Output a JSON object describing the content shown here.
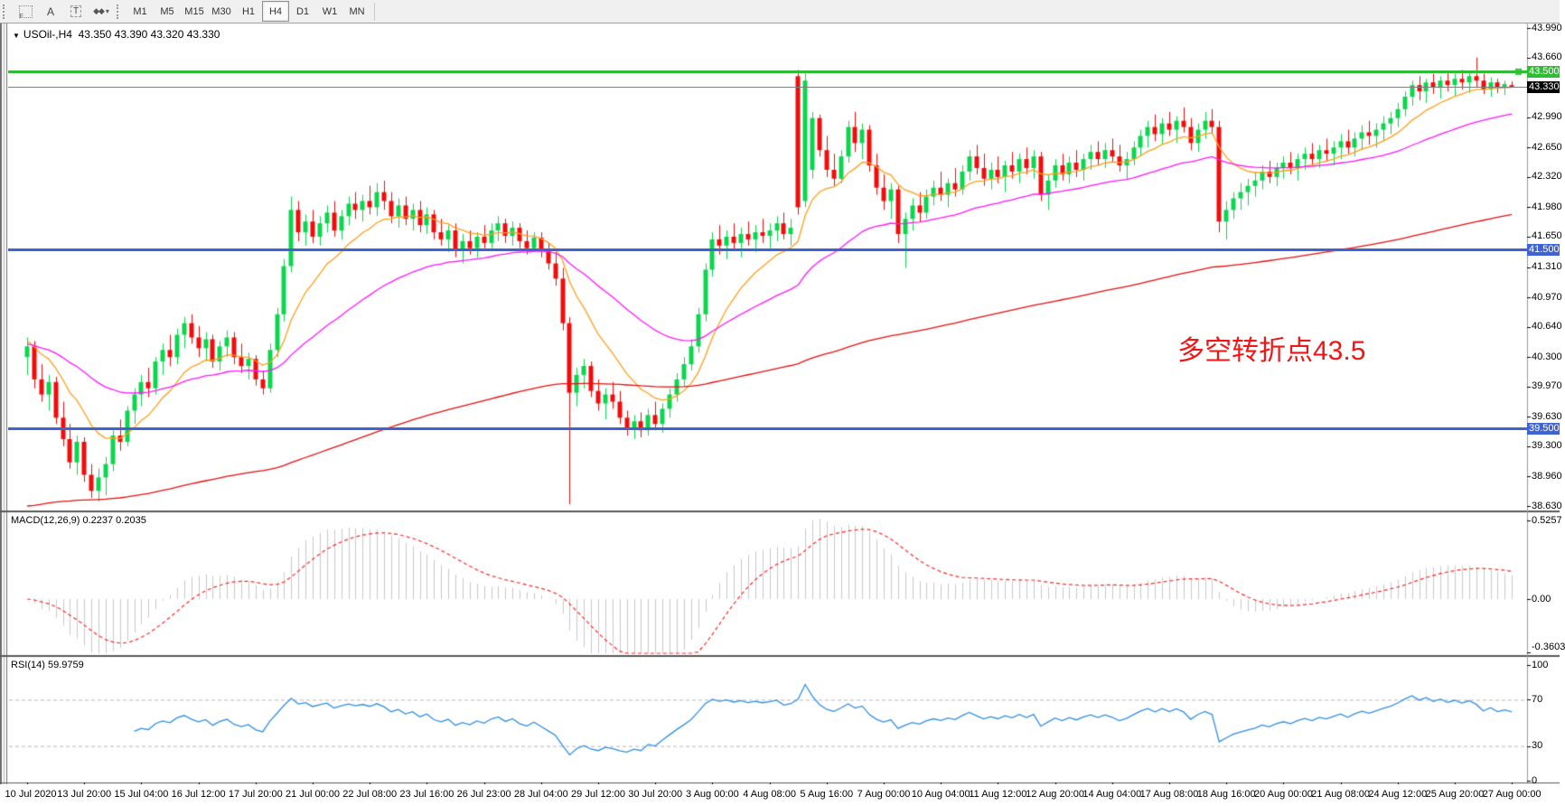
{
  "toolbar": {
    "tools": [
      {
        "name": "template-grid-icon",
        "glyph": "F"
      },
      {
        "name": "text-annotation-icon",
        "glyph": "A"
      },
      {
        "name": "text-label-icon",
        "glyph": "T"
      },
      {
        "name": "shapes-menu-icon",
        "glyph": "◆◆",
        "caret": "▾"
      }
    ],
    "timeframes": [
      "M1",
      "M5",
      "M15",
      "M30",
      "H1",
      "H4",
      "D1",
      "W1",
      "MN"
    ],
    "active_timeframe": "H4"
  },
  "chart": {
    "symbol_title": "USOil-,H4",
    "dropdown_glyph": "▼",
    "ohlc_readout": "43.350 43.390 43.320 43.330",
    "annotation": {
      "text": "多空转折点43.5",
      "color": "#f21515"
    },
    "price_axis_labels": [
      "43.990",
      "43.660",
      "42.990",
      "42.650",
      "42.320",
      "41.980",
      "41.650",
      "41.310",
      "40.970",
      "40.640",
      "40.300",
      "39.970",
      "39.630",
      "39.300",
      "38.960",
      "38.630"
    ],
    "levels": [
      {
        "label": "43.500",
        "value": 43.5,
        "color": "#2fbe33",
        "type": "resistance"
      },
      {
        "label": "41.500",
        "value": 41.5,
        "color": "#3f63d2",
        "type": "support"
      },
      {
        "label": "39.500",
        "value": 39.5,
        "color": "#3f63d2",
        "type": "support"
      }
    ],
    "current_price": {
      "label": "43.330",
      "value": 43.33,
      "badge_bg": "#000000",
      "line_color": "#808080"
    },
    "up_color": "#0bd64e",
    "down_color": "#f20c0c"
  },
  "macd_panel": {
    "label": "MACD(12,26,9) 0.2237 0.2035",
    "axis_labels": [
      "0.5257",
      "0.00",
      "-0.3603"
    ],
    "axis_values": [
      0.5257,
      0,
      -0.3603
    ],
    "histogram_color": "#c9c9c9",
    "signal_color": "#ff2a2a"
  },
  "rsi_panel": {
    "label": "RSI(14) 59.9759",
    "axis_labels": [
      "100",
      "70",
      "30",
      "0"
    ],
    "axis_values": [
      100,
      70,
      30,
      0
    ],
    "line_color": "#2f8fe8",
    "level_lines": [
      70,
      30
    ]
  },
  "time_axis": {
    "labels": [
      "10 Jul 2020",
      "13 Jul 20:00",
      "15 Jul 04:00",
      "16 Jul 12:00",
      "17 Jul 20:00",
      "21 Jul 00:00",
      "22 Jul 08:00",
      "23 Jul 16:00",
      "26 Jul 23:00",
      "28 Jul 04:00",
      "29 Jul 12:00",
      "30 Jul 20:00",
      "3 Aug 00:00",
      "4 Aug 08:00",
      "5 Aug 16:00",
      "7 Aug 00:00",
      "10 Aug 04:00",
      "11 Aug 12:00",
      "12 Aug 20:00",
      "14 Aug 04:00",
      "17 Aug 08:00",
      "18 Aug 16:00",
      "20 Aug 00:00",
      "21 Aug 08:00",
      "24 Aug 12:00",
      "25 Aug 20:00",
      "27 Aug 00:00"
    ]
  },
  "chart_data": {
    "type": "candlestick",
    "symbol": "USOil",
    "timeframe": "H4",
    "price_range": {
      "top": 43.99,
      "bottom": 38.63
    },
    "macd_range": {
      "top": 0.5257,
      "bottom": -0.3603
    },
    "levels": [
      43.5,
      41.5,
      39.5
    ],
    "moving_averages": [
      {
        "name": "fast-ma",
        "color": "#ff9f1a",
        "alpha": 0.16,
        "seed": 40.5
      },
      {
        "name": "medium-ma",
        "color": "#ff17ff",
        "alpha": 0.05,
        "seed": 40.45
      },
      {
        "name": "slow-ma",
        "color": "#e81010",
        "alpha": 0.011,
        "seed": 38.6
      }
    ],
    "macd": {
      "fast": 12,
      "slow": 26,
      "signal": 9,
      "current": 0.2237,
      "current_signal": 0.2035
    },
    "rsi": {
      "period": 14,
      "current": 59.9759
    },
    "ohlc": [
      [
        40.3,
        40.52,
        40.1,
        40.42
      ],
      [
        40.42,
        40.48,
        39.95,
        40.05
      ],
      [
        40.05,
        40.22,
        39.8,
        39.88
      ],
      [
        39.88,
        40.1,
        39.7,
        40.02
      ],
      [
        40.02,
        40.08,
        39.55,
        39.62
      ],
      [
        39.62,
        39.8,
        39.3,
        39.38
      ],
      [
        39.38,
        39.55,
        39.05,
        39.12
      ],
      [
        39.12,
        39.42,
        38.98,
        39.35
      ],
      [
        39.35,
        39.4,
        38.9,
        38.98
      ],
      [
        38.98,
        39.1,
        38.72,
        38.8
      ],
      [
        38.8,
        39.05,
        38.68,
        38.95
      ],
      [
        38.95,
        39.18,
        38.75,
        39.1
      ],
      [
        39.1,
        39.48,
        39.02,
        39.42
      ],
      [
        39.42,
        39.6,
        39.25,
        39.35
      ],
      [
        39.35,
        39.75,
        39.3,
        39.7
      ],
      [
        39.7,
        39.95,
        39.55,
        39.88
      ],
      [
        39.88,
        40.1,
        39.75,
        40.02
      ],
      [
        40.02,
        40.18,
        39.85,
        39.95
      ],
      [
        39.95,
        40.3,
        39.88,
        40.25
      ],
      [
        40.25,
        40.45,
        40.1,
        40.38
      ],
      [
        40.38,
        40.55,
        40.2,
        40.3
      ],
      [
        40.3,
        40.62,
        40.22,
        40.55
      ],
      [
        40.55,
        40.75,
        40.4,
        40.68
      ],
      [
        40.68,
        40.78,
        40.45,
        40.52
      ],
      [
        40.52,
        40.65,
        40.3,
        40.4
      ],
      [
        40.4,
        40.58,
        40.25,
        40.5
      ],
      [
        40.5,
        40.55,
        40.18,
        40.25
      ],
      [
        40.25,
        40.48,
        40.15,
        40.42
      ],
      [
        40.42,
        40.6,
        40.3,
        40.52
      ],
      [
        40.52,
        40.58,
        40.22,
        40.3
      ],
      [
        40.3,
        40.45,
        40.12,
        40.2
      ],
      [
        40.2,
        40.35,
        40.05,
        40.28
      ],
      [
        40.28,
        40.32,
        39.98,
        40.05
      ],
      [
        40.05,
        40.15,
        39.88,
        39.95
      ],
      [
        39.95,
        40.45,
        39.9,
        40.38
      ],
      [
        40.38,
        40.85,
        40.3,
        40.78
      ],
      [
        40.78,
        41.4,
        40.7,
        41.32
      ],
      [
        41.32,
        42.1,
        41.25,
        41.95
      ],
      [
        41.95,
        42.05,
        41.6,
        41.7
      ],
      [
        41.7,
        41.9,
        41.55,
        41.82
      ],
      [
        41.82,
        41.95,
        41.58,
        41.65
      ],
      [
        41.65,
        41.88,
        41.55,
        41.8
      ],
      [
        41.8,
        42.0,
        41.7,
        41.92
      ],
      [
        41.92,
        42.05,
        41.65,
        41.72
      ],
      [
        41.72,
        41.95,
        41.62,
        41.88
      ],
      [
        41.88,
        42.1,
        41.78,
        42.02
      ],
      [
        42.02,
        42.15,
        41.85,
        41.95
      ],
      [
        41.95,
        42.12,
        41.82,
        42.05
      ],
      [
        42.05,
        42.22,
        41.9,
        41.98
      ],
      [
        41.98,
        42.25,
        41.88,
        42.15
      ],
      [
        42.15,
        42.28,
        41.95,
        42.05
      ],
      [
        42.05,
        42.15,
        41.8,
        41.88
      ],
      [
        41.88,
        42.08,
        41.75,
        42.0
      ],
      [
        42.0,
        42.1,
        41.78,
        41.85
      ],
      [
        41.85,
        42.02,
        41.72,
        41.95
      ],
      [
        41.95,
        42.05,
        41.7,
        41.78
      ],
      [
        41.78,
        41.98,
        41.68,
        41.9
      ],
      [
        41.9,
        41.95,
        41.62,
        41.7
      ],
      [
        41.7,
        41.85,
        41.55,
        41.62
      ],
      [
        41.62,
        41.78,
        41.48,
        41.72
      ],
      [
        41.72,
        41.8,
        41.42,
        41.5
      ],
      [
        41.5,
        41.68,
        41.35,
        41.6
      ],
      [
        41.6,
        41.72,
        41.45,
        41.52
      ],
      [
        41.52,
        41.7,
        41.42,
        41.65
      ],
      [
        41.65,
        41.78,
        41.52,
        41.58
      ],
      [
        41.58,
        41.8,
        41.52,
        41.72
      ],
      [
        41.72,
        41.88,
        41.6,
        41.8
      ],
      [
        41.8,
        41.85,
        41.58,
        41.66
      ],
      [
        41.66,
        41.82,
        41.55,
        41.75
      ],
      [
        41.75,
        41.8,
        41.52,
        41.6
      ],
      [
        41.6,
        41.72,
        41.45,
        41.52
      ],
      [
        41.52,
        41.7,
        41.48,
        41.64
      ],
      [
        41.64,
        41.7,
        41.42,
        41.5
      ],
      [
        41.5,
        41.58,
        41.28,
        41.35
      ],
      [
        41.35,
        41.48,
        41.1,
        41.18
      ],
      [
        41.18,
        41.3,
        40.6,
        40.68
      ],
      [
        40.68,
        40.75,
        38.65,
        39.9
      ],
      [
        39.9,
        40.18,
        39.75,
        40.1
      ],
      [
        40.1,
        40.28,
        39.95,
        40.2
      ],
      [
        40.2,
        40.25,
        39.85,
        39.92
      ],
      [
        39.92,
        40.05,
        39.7,
        39.78
      ],
      [
        39.78,
        39.95,
        39.6,
        39.88
      ],
      [
        39.88,
        40.02,
        39.72,
        39.8
      ],
      [
        39.8,
        39.92,
        39.55,
        39.62
      ],
      [
        39.62,
        39.7,
        39.42,
        39.5
      ],
      [
        39.5,
        39.65,
        39.38,
        39.58
      ],
      [
        39.58,
        39.68,
        39.4,
        39.48
      ],
      [
        39.48,
        39.72,
        39.42,
        39.65
      ],
      [
        39.65,
        39.8,
        39.48,
        39.55
      ],
      [
        39.55,
        39.78,
        39.45,
        39.72
      ],
      [
        39.72,
        39.95,
        39.62,
        39.88
      ],
      [
        39.88,
        40.12,
        39.8,
        40.05
      ],
      [
        40.05,
        40.3,
        39.98,
        40.22
      ],
      [
        40.22,
        40.5,
        40.15,
        40.42
      ],
      [
        40.42,
        40.85,
        40.35,
        40.78
      ],
      [
        40.78,
        41.35,
        40.7,
        41.28
      ],
      [
        41.28,
        41.7,
        41.2,
        41.62
      ],
      [
        41.62,
        41.78,
        41.45,
        41.55
      ],
      [
        41.55,
        41.72,
        41.4,
        41.65
      ],
      [
        41.65,
        41.8,
        41.5,
        41.58
      ],
      [
        41.58,
        41.75,
        41.42,
        41.68
      ],
      [
        41.68,
        41.82,
        41.55,
        41.62
      ],
      [
        41.62,
        41.78,
        41.48,
        41.7
      ],
      [
        41.7,
        41.85,
        41.58,
        41.66
      ],
      [
        41.66,
        41.8,
        41.52,
        41.72
      ],
      [
        41.72,
        41.88,
        41.6,
        41.8
      ],
      [
        41.8,
        41.92,
        41.62,
        41.68
      ],
      [
        41.68,
        41.85,
        41.55,
        41.75
      ],
      [
        43.45,
        43.52,
        41.9,
        41.98
      ],
      [
        42.05,
        43.5,
        41.98,
        43.4
      ],
      [
        42.4,
        43.05,
        42.3,
        42.98
      ],
      [
        42.98,
        43.02,
        42.55,
        42.62
      ],
      [
        42.62,
        42.78,
        42.32,
        42.4
      ],
      [
        42.4,
        42.58,
        42.22,
        42.3
      ],
      [
        42.3,
        42.62,
        42.25,
        42.55
      ],
      [
        42.55,
        42.95,
        42.48,
        42.88
      ],
      [
        42.88,
        43.05,
        42.6,
        42.7
      ],
      [
        42.7,
        42.92,
        42.52,
        42.85
      ],
      [
        42.85,
        42.9,
        42.38,
        42.45
      ],
      [
        42.45,
        42.58,
        42.12,
        42.2
      ],
      [
        42.2,
        42.35,
        41.95,
        42.05
      ],
      [
        42.05,
        42.25,
        41.85,
        42.18
      ],
      [
        42.18,
        42.22,
        41.58,
        41.68
      ],
      [
        41.68,
        41.92,
        41.3,
        41.85
      ],
      [
        41.85,
        42.08,
        41.72,
        42.0
      ],
      [
        42.0,
        42.15,
        41.82,
        41.92
      ],
      [
        41.92,
        42.18,
        41.85,
        42.1
      ],
      [
        42.1,
        42.28,
        42.0,
        42.2
      ],
      [
        42.2,
        42.38,
        42.05,
        42.12
      ],
      [
        42.12,
        42.3,
        41.98,
        42.25
      ],
      [
        42.25,
        42.42,
        42.1,
        42.18
      ],
      [
        42.18,
        42.45,
        42.12,
        42.38
      ],
      [
        42.38,
        42.62,
        42.28,
        42.55
      ],
      [
        42.55,
        42.68,
        42.35,
        42.42
      ],
      [
        42.42,
        42.58,
        42.22,
        42.3
      ],
      [
        42.3,
        42.48,
        42.18,
        42.4
      ],
      [
        42.4,
        42.55,
        42.25,
        42.32
      ],
      [
        42.32,
        42.5,
        42.15,
        42.45
      ],
      [
        42.45,
        42.6,
        42.3,
        42.38
      ],
      [
        42.38,
        42.58,
        42.25,
        42.52
      ],
      [
        42.52,
        42.65,
        42.35,
        42.42
      ],
      [
        42.42,
        42.62,
        42.3,
        42.55
      ],
      [
        42.55,
        42.6,
        42.05,
        42.12
      ],
      [
        42.12,
        42.35,
        41.95,
        42.28
      ],
      [
        42.28,
        42.52,
        42.2,
        42.45
      ],
      [
        42.45,
        42.58,
        42.28,
        42.35
      ],
      [
        42.35,
        42.55,
        42.25,
        42.48
      ],
      [
        42.48,
        42.62,
        42.32,
        42.4
      ],
      [
        42.4,
        42.58,
        42.28,
        42.52
      ],
      [
        42.52,
        42.68,
        42.4,
        42.6
      ],
      [
        42.6,
        42.72,
        42.45,
        42.52
      ],
      [
        42.52,
        42.7,
        42.42,
        42.62
      ],
      [
        42.62,
        42.75,
        42.48,
        42.55
      ],
      [
        42.55,
        42.68,
        42.38,
        42.45
      ],
      [
        42.45,
        42.6,
        42.3,
        42.52
      ],
      [
        42.52,
        42.72,
        42.45,
        42.65
      ],
      [
        42.65,
        42.85,
        42.55,
        42.78
      ],
      [
        42.78,
        42.95,
        42.65,
        42.88
      ],
      [
        42.88,
        43.02,
        42.72,
        42.8
      ],
      [
        42.8,
        42.98,
        42.68,
        42.92
      ],
      [
        42.92,
        43.05,
        42.78,
        42.85
      ],
      [
        42.85,
        43.0,
        42.7,
        42.95
      ],
      [
        42.95,
        43.1,
        42.82,
        42.88
      ],
      [
        42.88,
        42.98,
        42.62,
        42.7
      ],
      [
        42.7,
        42.92,
        42.6,
        42.85
      ],
      [
        42.85,
        43.05,
        42.75,
        42.95
      ],
      [
        42.95,
        43.08,
        42.8,
        42.88
      ],
      [
        42.88,
        42.95,
        41.7,
        41.82
      ],
      [
        41.82,
        42.05,
        41.62,
        41.95
      ],
      [
        41.95,
        42.15,
        41.85,
        42.08
      ],
      [
        42.08,
        42.25,
        41.95,
        42.15
      ],
      [
        42.15,
        42.3,
        42.0,
        42.22
      ],
      [
        42.22,
        42.38,
        42.1,
        42.28
      ],
      [
        42.28,
        42.45,
        42.18,
        42.38
      ],
      [
        42.38,
        42.5,
        42.25,
        42.32
      ],
      [
        42.32,
        42.48,
        42.22,
        42.42
      ],
      [
        42.42,
        42.55,
        42.3,
        42.48
      ],
      [
        42.48,
        42.6,
        42.35,
        42.42
      ],
      [
        42.42,
        42.58,
        42.28,
        42.52
      ],
      [
        42.52,
        42.65,
        42.4,
        42.58
      ],
      [
        42.58,
        42.7,
        42.45,
        42.52
      ],
      [
        42.52,
        42.68,
        42.42,
        42.62
      ],
      [
        42.62,
        42.75,
        42.5,
        42.58
      ],
      [
        42.58,
        42.72,
        42.45,
        42.65
      ],
      [
        42.65,
        42.8,
        42.52,
        42.72
      ],
      [
        42.72,
        42.85,
        42.58,
        42.65
      ],
      [
        42.65,
        42.82,
        42.55,
        42.75
      ],
      [
        42.75,
        42.9,
        42.62,
        42.82
      ],
      [
        42.82,
        42.95,
        42.68,
        42.78
      ],
      [
        42.78,
        42.92,
        42.65,
        42.85
      ],
      [
        42.85,
        43.0,
        42.72,
        42.92
      ],
      [
        42.92,
        43.05,
        42.8,
        42.98
      ],
      [
        42.98,
        43.15,
        42.88,
        43.08
      ],
      [
        43.08,
        43.28,
        43.0,
        43.22
      ],
      [
        43.22,
        43.4,
        43.12,
        43.35
      ],
      [
        43.35,
        43.45,
        43.18,
        43.28
      ],
      [
        43.28,
        43.42,
        43.15,
        43.38
      ],
      [
        43.38,
        43.48,
        43.25,
        43.32
      ],
      [
        43.32,
        43.45,
        43.2,
        43.4
      ],
      [
        43.4,
        43.5,
        43.28,
        43.35
      ],
      [
        43.35,
        43.48,
        43.22,
        43.42
      ],
      [
        43.42,
        43.52,
        43.3,
        43.38
      ],
      [
        43.38,
        43.5,
        43.26,
        43.45
      ],
      [
        43.45,
        43.66,
        43.32,
        43.4
      ],
      [
        43.4,
        43.48,
        43.25,
        43.3
      ],
      [
        43.3,
        43.44,
        43.22,
        43.38
      ],
      [
        43.38,
        43.42,
        43.26,
        43.32
      ],
      [
        43.32,
        43.4,
        43.24,
        43.36
      ],
      [
        43.35,
        43.39,
        43.32,
        43.33
      ]
    ]
  }
}
